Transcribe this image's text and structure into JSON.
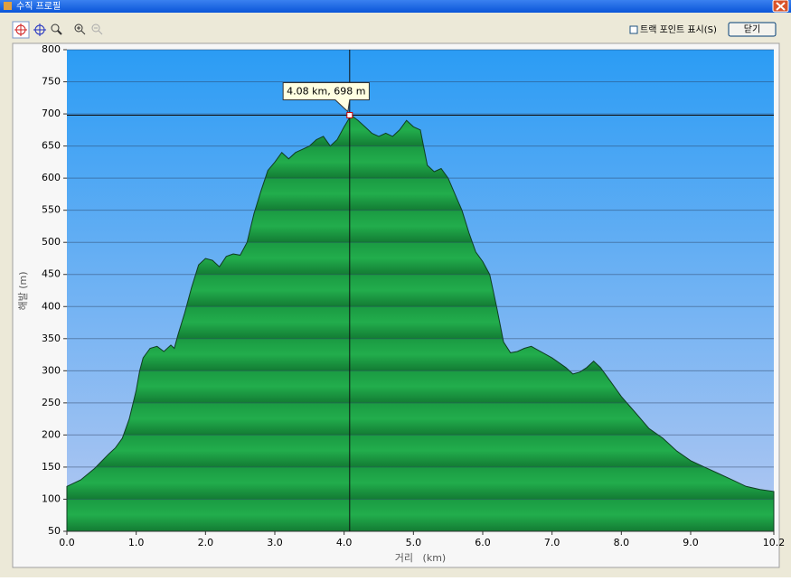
{
  "window": {
    "title": "수직 프로필"
  },
  "toolbar": {
    "checkbox_label": "트랙 포인트 표시(S)",
    "close_button": "닫기"
  },
  "chart_data": {
    "type": "area",
    "x_label": "거리   (km)",
    "y_label": "해발 (m)",
    "x": [
      0,
      0.2,
      0.4,
      0.6,
      0.7,
      0.8,
      0.9,
      1.0,
      1.05,
      1.1,
      1.2,
      1.3,
      1.4,
      1.5,
      1.55,
      1.6,
      1.7,
      1.8,
      1.9,
      2.0,
      2.1,
      2.2,
      2.3,
      2.4,
      2.5,
      2.6,
      2.7,
      2.8,
      2.9,
      3.0,
      3.1,
      3.2,
      3.3,
      3.4,
      3.5,
      3.6,
      3.7,
      3.8,
      3.9,
      4.0,
      4.1,
      4.2,
      4.3,
      4.4,
      4.5,
      4.6,
      4.7,
      4.8,
      4.9,
      5.0,
      5.1,
      5.2,
      5.3,
      5.4,
      5.5,
      5.6,
      5.7,
      5.8,
      5.9,
      6.0,
      6.1,
      6.2,
      6.3,
      6.4,
      6.5,
      6.6,
      6.7,
      6.8,
      7.0,
      7.2,
      7.3,
      7.4,
      7.5,
      7.6,
      7.7,
      7.8,
      8.0,
      8.2,
      8.4,
      8.6,
      8.8,
      9.0,
      9.2,
      9.4,
      9.6,
      9.8,
      10.0,
      10.2
    ],
    "values": [
      120,
      130,
      148,
      170,
      180,
      195,
      225,
      270,
      300,
      320,
      335,
      338,
      330,
      340,
      335,
      355,
      390,
      430,
      465,
      475,
      472,
      462,
      478,
      482,
      480,
      500,
      545,
      580,
      612,
      625,
      640,
      630,
      640,
      645,
      650,
      660,
      665,
      650,
      660,
      680,
      698,
      690,
      680,
      670,
      665,
      670,
      665,
      675,
      690,
      680,
      675,
      620,
      610,
      615,
      600,
      575,
      550,
      515,
      485,
      470,
      450,
      400,
      345,
      328,
      330,
      335,
      338,
      332,
      320,
      305,
      295,
      298,
      305,
      315,
      305,
      290,
      260,
      235,
      210,
      195,
      175,
      160,
      150,
      140,
      130,
      120,
      115,
      112
    ],
    "color": "#1c9a40",
    "xlim": [
      0,
      10.2
    ],
    "ylim": [
      50,
      800
    ],
    "xticks": [
      {
        "value": 0,
        "label": "0.0"
      },
      {
        "value": 1,
        "label": "1.0"
      },
      {
        "value": 2,
        "label": "2.0"
      },
      {
        "value": 3,
        "label": "3.0"
      },
      {
        "value": 4,
        "label": "4.0"
      },
      {
        "value": 5,
        "label": "5.0"
      },
      {
        "value": 6,
        "label": "6.0"
      },
      {
        "value": 7,
        "label": "7.0"
      },
      {
        "value": 8,
        "label": "8.0"
      },
      {
        "value": 9,
        "label": "9.0"
      },
      10.2
    ],
    "yticks": [
      50,
      100,
      150,
      200,
      250,
      300,
      350,
      400,
      450,
      500,
      550,
      600,
      650,
      700,
      750,
      800
    ],
    "grid": true,
    "cursor": {
      "x": 4.08,
      "y": 698,
      "label": "4.08 km, 698 m"
    }
  }
}
